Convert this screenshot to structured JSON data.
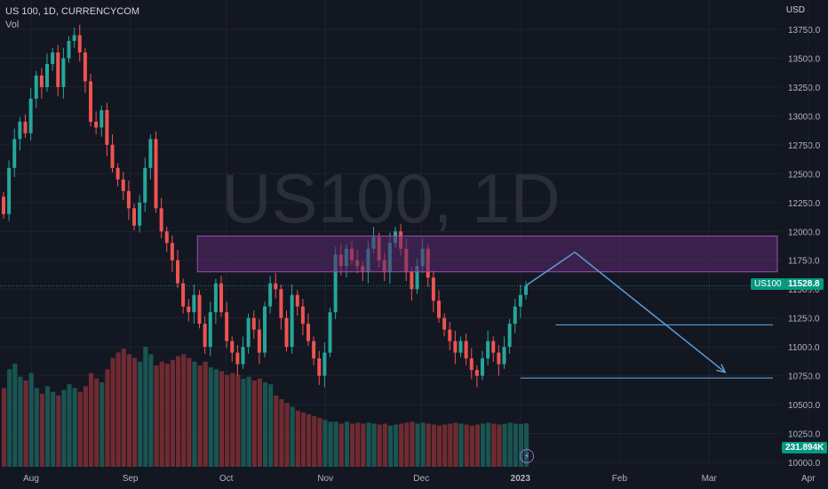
{
  "header": {
    "symbol_line": "US 100, 1D, CURRENCYCOM",
    "vol_label": "Vol",
    "currency": "USD"
  },
  "watermark": "US100, 1D",
  "price_tag": {
    "symbol": "US100",
    "value": "11528.8"
  },
  "volume_tag": "231.894K",
  "colors": {
    "background": "#131722",
    "up": "#26a69a",
    "down": "#ef5350",
    "zone_fill": "#5b2a6e",
    "zone_border": "#a14ab8",
    "arrow": "#5b9bd5"
  },
  "chart_data": {
    "type": "candlestick",
    "title": "US 100, 1D, CURRENCYCOM",
    "ylabel": "USD",
    "ylim": [
      10000,
      13800
    ],
    "y_ticks": [
      "13750.0",
      "13500.0",
      "13250.0",
      "13000.0",
      "12750.0",
      "12500.0",
      "12250.0",
      "12000.0",
      "11750.0",
      "11500.0",
      "11250.0",
      "11000.0",
      "10750.0",
      "10500.0",
      "10250.0",
      "10000.0"
    ],
    "x_ticks": [
      "Aug",
      "Sep",
      "Oct",
      "Nov",
      "Dec",
      "2023",
      "Feb",
      "Mar",
      "Apr"
    ],
    "grid": true,
    "last_price": 11528.8,
    "last_volume": "231.894K",
    "zone": {
      "low": 11650,
      "high": 11960,
      "from": "2022-09-22",
      "to": "2023-04-01"
    },
    "projection_path": [
      {
        "date": "2023-01-18",
        "price": 11820
      },
      {
        "date": "2023-03-06",
        "price": 10780
      }
    ],
    "support_lines": [
      {
        "from": "2023-01-12",
        "to": "2023-04-01",
        "price": 11190
      },
      {
        "from": "2023-01-01",
        "to": "2023-04-01",
        "price": 10730
      }
    ],
    "candles": [
      {
        "o": 12300,
        "c": 12150,
        "v": 420
      },
      {
        "o": 12150,
        "c": 12550,
        "v": 520
      },
      {
        "o": 12550,
        "c": 12800,
        "v": 550
      },
      {
        "o": 12800,
        "c": 12950,
        "v": 480
      },
      {
        "o": 12950,
        "c": 12850,
        "v": 460
      },
      {
        "o": 12850,
        "c": 13150,
        "v": 500
      },
      {
        "o": 13150,
        "c": 13350,
        "v": 420
      },
      {
        "o": 13350,
        "c": 13250,
        "v": 390
      },
      {
        "o": 13250,
        "c": 13450,
        "v": 430
      },
      {
        "o": 13450,
        "c": 13550,
        "v": 400
      },
      {
        "o": 13550,
        "c": 13250,
        "v": 380
      },
      {
        "o": 13250,
        "c": 13500,
        "v": 410
      },
      {
        "o": 13500,
        "c": 13650,
        "v": 440
      },
      {
        "o": 13650,
        "c": 13700,
        "v": 420
      },
      {
        "o": 13700,
        "c": 13550,
        "v": 400
      },
      {
        "o": 13550,
        "c": 13300,
        "v": 430
      },
      {
        "o": 13300,
        "c": 12950,
        "v": 500
      },
      {
        "o": 12950,
        "c": 12900,
        "v": 470
      },
      {
        "o": 12900,
        "c": 13050,
        "v": 450
      },
      {
        "o": 13050,
        "c": 12750,
        "v": 520
      },
      {
        "o": 12750,
        "c": 12550,
        "v": 580
      },
      {
        "o": 12550,
        "c": 12450,
        "v": 610
      },
      {
        "o": 12450,
        "c": 12350,
        "v": 630
      },
      {
        "o": 12350,
        "c": 12200,
        "v": 600
      },
      {
        "o": 12200,
        "c": 12050,
        "v": 580
      },
      {
        "o": 12050,
        "c": 12250,
        "v": 560
      },
      {
        "o": 12250,
        "c": 12550,
        "v": 640
      },
      {
        "o": 12550,
        "c": 12800,
        "v": 600
      },
      {
        "o": 12800,
        "c": 12200,
        "v": 540
      },
      {
        "o": 12200,
        "c": 12000,
        "v": 560
      },
      {
        "o": 12000,
        "c": 11900,
        "v": 550
      },
      {
        "o": 11900,
        "c": 11750,
        "v": 570
      },
      {
        "o": 11750,
        "c": 11550,
        "v": 590
      },
      {
        "o": 11550,
        "c": 11350,
        "v": 600
      },
      {
        "o": 11350,
        "c": 11300,
        "v": 580
      },
      {
        "o": 11300,
        "c": 11450,
        "v": 560
      },
      {
        "o": 11450,
        "c": 11200,
        "v": 540
      },
      {
        "o": 11200,
        "c": 11000,
        "v": 560
      },
      {
        "o": 11000,
        "c": 11300,
        "v": 530
      },
      {
        "o": 11300,
        "c": 11550,
        "v": 520
      },
      {
        "o": 11550,
        "c": 11300,
        "v": 510
      },
      {
        "o": 11300,
        "c": 11050,
        "v": 490
      },
      {
        "o": 11050,
        "c": 10950,
        "v": 500
      },
      {
        "o": 10950,
        "c": 10850,
        "v": 490
      },
      {
        "o": 10850,
        "c": 11000,
        "v": 470
      },
      {
        "o": 11000,
        "c": 11250,
        "v": 480
      },
      {
        "o": 11250,
        "c": 11150,
        "v": 460
      },
      {
        "o": 11150,
        "c": 10950,
        "v": 470
      },
      {
        "o": 10950,
        "c": 11350,
        "v": 450
      },
      {
        "o": 11350,
        "c": 11550,
        "v": 440
      },
      {
        "o": 11550,
        "c": 11500,
        "v": 380
      },
      {
        "o": 11500,
        "c": 11250,
        "v": 360
      },
      {
        "o": 11250,
        "c": 11000,
        "v": 340
      },
      {
        "o": 11000,
        "c": 11450,
        "v": 320
      },
      {
        "o": 11450,
        "c": 11350,
        "v": 300
      },
      {
        "o": 11350,
        "c": 11200,
        "v": 290
      },
      {
        "o": 11200,
        "c": 11050,
        "v": 280
      },
      {
        "o": 11050,
        "c": 10900,
        "v": 270
      },
      {
        "o": 10900,
        "c": 10750,
        "v": 260
      },
      {
        "o": 10750,
        "c": 10950,
        "v": 250
      },
      {
        "o": 10950,
        "c": 11300,
        "v": 240
      },
      {
        "o": 11300,
        "c": 11800,
        "v": 240
      },
      {
        "o": 11800,
        "c": 11700,
        "v": 230
      },
      {
        "o": 11700,
        "c": 11850,
        "v": 240
      },
      {
        "o": 11850,
        "c": 11750,
        "v": 230
      },
      {
        "o": 11750,
        "c": 11700,
        "v": 235
      },
      {
        "o": 11700,
        "c": 11650,
        "v": 230
      },
      {
        "o": 11650,
        "c": 11850,
        "v": 235
      },
      {
        "o": 11850,
        "c": 11950,
        "v": 230
      },
      {
        "o": 11950,
        "c": 11750,
        "v": 225
      },
      {
        "o": 11750,
        "c": 11650,
        "v": 230
      },
      {
        "o": 11650,
        "c": 11900,
        "v": 220
      },
      {
        "o": 11900,
        "c": 12000,
        "v": 225
      },
      {
        "o": 12000,
        "c": 11850,
        "v": 230
      },
      {
        "o": 11850,
        "c": 11650,
        "v": 235
      },
      {
        "o": 11650,
        "c": 11500,
        "v": 240
      },
      {
        "o": 11500,
        "c": 11700,
        "v": 230
      },
      {
        "o": 11700,
        "c": 11850,
        "v": 235
      },
      {
        "o": 11850,
        "c": 11600,
        "v": 230
      },
      {
        "o": 11600,
        "c": 11400,
        "v": 225
      },
      {
        "o": 11400,
        "c": 11250,
        "v": 220
      },
      {
        "o": 11250,
        "c": 11150,
        "v": 225
      },
      {
        "o": 11150,
        "c": 11050,
        "v": 230
      },
      {
        "o": 11050,
        "c": 10950,
        "v": 235
      },
      {
        "o": 10950,
        "c": 11050,
        "v": 230
      },
      {
        "o": 11050,
        "c": 10900,
        "v": 225
      },
      {
        "o": 10900,
        "c": 10800,
        "v": 220
      },
      {
        "o": 10800,
        "c": 10750,
        "v": 225
      },
      {
        "o": 10750,
        "c": 10900,
        "v": 230
      },
      {
        "o": 10900,
        "c": 11050,
        "v": 235
      },
      {
        "o": 11050,
        "c": 10950,
        "v": 230
      },
      {
        "o": 10950,
        "c": 10850,
        "v": 225
      },
      {
        "o": 10850,
        "c": 11000,
        "v": 230
      },
      {
        "o": 11000,
        "c": 11200,
        "v": 235
      },
      {
        "o": 11200,
        "c": 11350,
        "v": 230
      },
      {
        "o": 11350,
        "c": 11450,
        "v": 228
      },
      {
        "o": 11450,
        "c": 11528.8,
        "v": 231.894
      }
    ]
  }
}
